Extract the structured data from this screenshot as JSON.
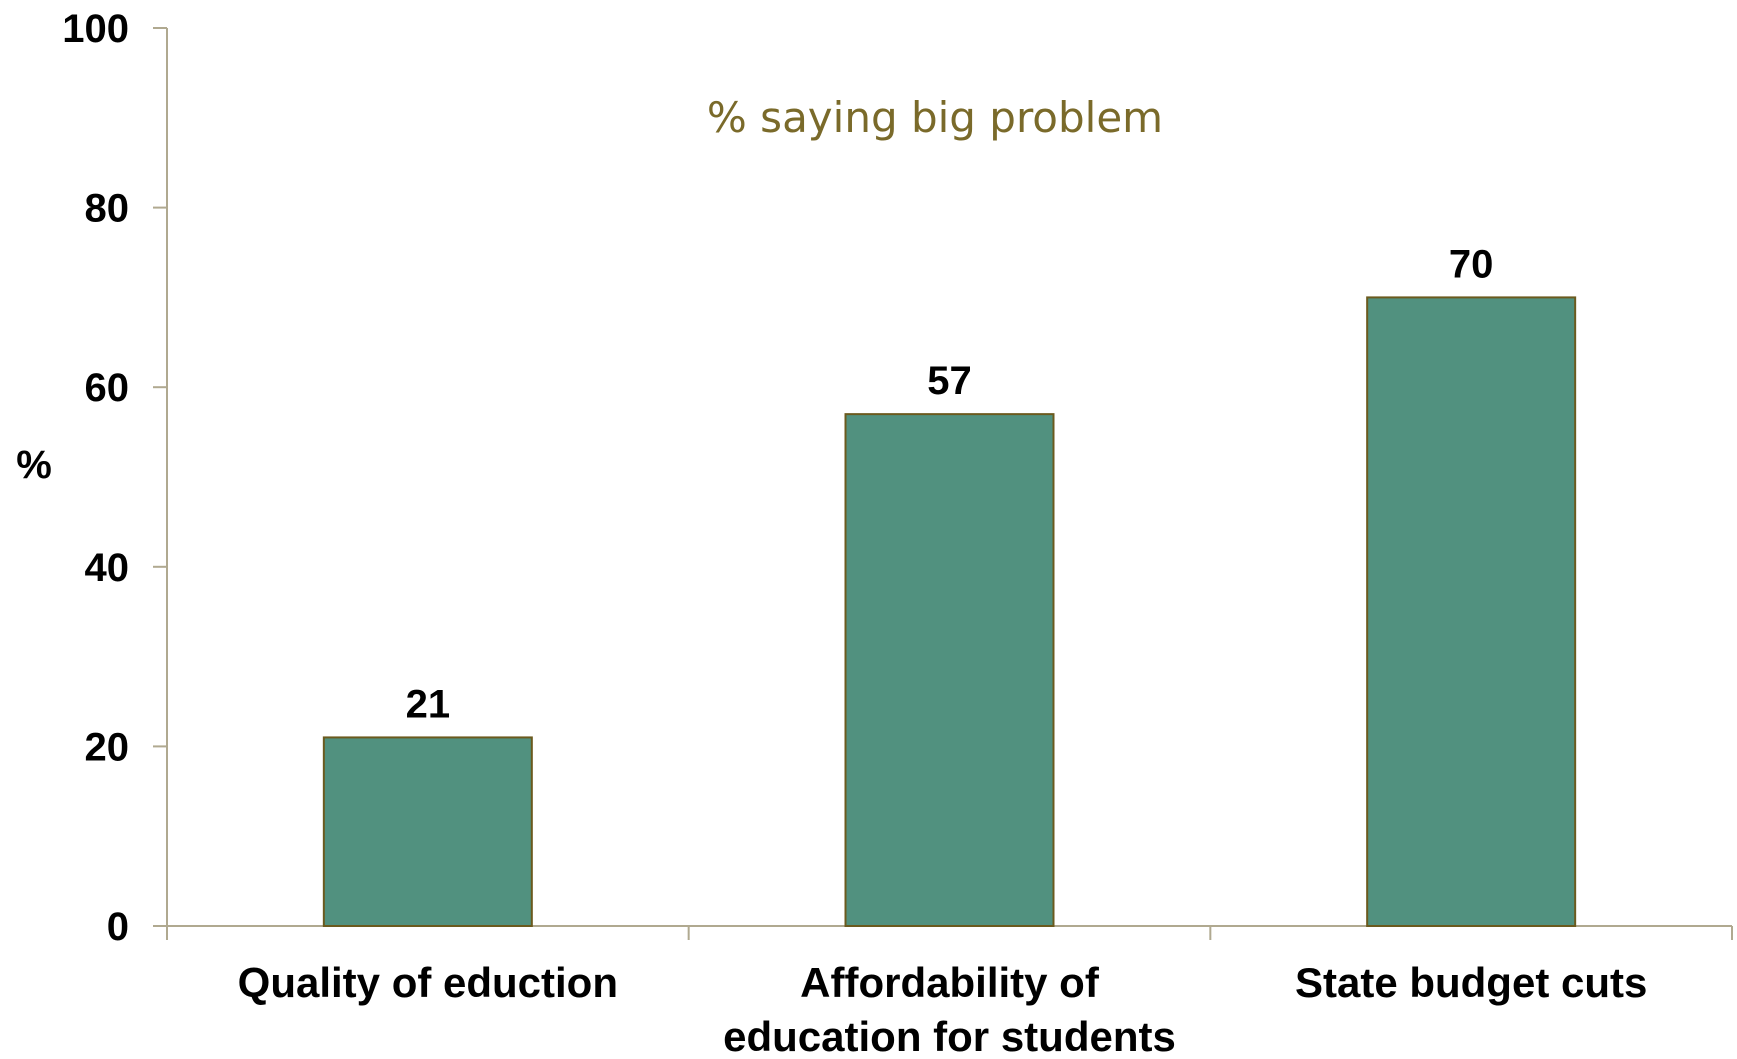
{
  "chart_data": {
    "type": "bar",
    "title": "",
    "subtitle": "% saying big problem",
    "xlabel": "",
    "ylabel": "%",
    "ylim": [
      0,
      100
    ],
    "yticks": [
      0,
      20,
      40,
      60,
      80,
      100
    ],
    "categories": [
      [
        "Quality of eduction"
      ],
      [
        "Affordability of",
        "education for students"
      ],
      [
        "State budget cuts"
      ]
    ],
    "values": [
      21,
      57,
      70
    ],
    "grid": false,
    "legend": "none",
    "colors": {
      "bar_fill": "#51917f",
      "bar_edge": "#6b5a1e",
      "subtitle": "#7a6a2a",
      "axis": "#b0a990"
    }
  }
}
